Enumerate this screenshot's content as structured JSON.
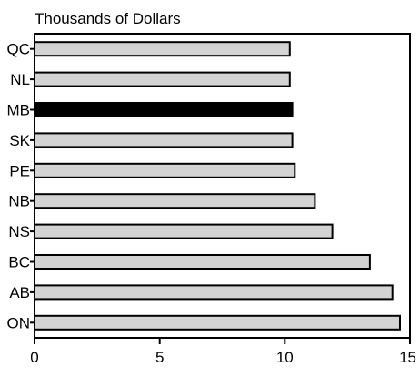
{
  "chart_data": {
    "type": "bar",
    "orientation": "horizontal",
    "title": "Thousands of Dollars",
    "xlabel": "",
    "ylabel": "",
    "categories": [
      "QC",
      "NL",
      "MB",
      "SK",
      "PE",
      "NB",
      "NS",
      "BC",
      "AB",
      "ON"
    ],
    "values": [
      10.2,
      10.2,
      10.3,
      10.3,
      10.4,
      11.2,
      11.9,
      13.4,
      14.3,
      14.6
    ],
    "highlight": "MB",
    "xlim": [
      0,
      15
    ],
    "xticks": [
      0,
      5,
      10,
      15
    ],
    "grid": false,
    "colors": {
      "bar": "#d3d3d3",
      "highlight": "#000000",
      "outline": "#000000"
    }
  }
}
